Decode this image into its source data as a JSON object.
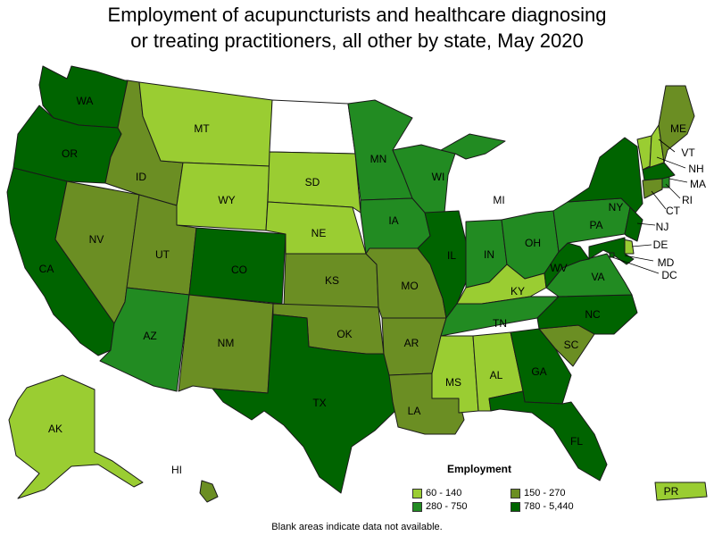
{
  "title_line1": "Employment of acupuncturists and healthcare diagnosing",
  "title_line2": "or treating practitioners, all other by state, May 2020",
  "colors": {
    "c1": "#9acd32",
    "c2": "#6b8e23",
    "c3": "#228b22",
    "c4": "#006400",
    "none": "#ffffff"
  },
  "legend": {
    "title": "Employment",
    "items": [
      {
        "label": "60 - 140",
        "class": "c1"
      },
      {
        "label": "150 - 270",
        "class": "c2"
      },
      {
        "label": "280 - 750",
        "class": "c3"
      },
      {
        "label": "780 - 5,440",
        "class": "c4"
      }
    ]
  },
  "footnote": "Blank areas indicate data not available.",
  "states": {
    "WA": {
      "label": "WA",
      "class": "c4"
    },
    "OR": {
      "label": "OR",
      "class": "c4"
    },
    "CA": {
      "label": "CA",
      "class": "c4"
    },
    "NV": {
      "label": "NV",
      "class": "c2"
    },
    "ID": {
      "label": "ID",
      "class": "c2"
    },
    "MT": {
      "label": "MT",
      "class": "c1"
    },
    "WY": {
      "label": "WY",
      "class": "c1"
    },
    "UT": {
      "label": "UT",
      "class": "c2"
    },
    "AZ": {
      "label": "AZ",
      "class": "c3"
    },
    "CO": {
      "label": "CO",
      "class": "c4"
    },
    "NM": {
      "label": "NM",
      "class": "c2"
    },
    "ND": {
      "label": "",
      "class": "none"
    },
    "SD": {
      "label": "SD",
      "class": "c1"
    },
    "NE": {
      "label": "NE",
      "class": "c1"
    },
    "KS": {
      "label": "KS",
      "class": "c2"
    },
    "OK": {
      "label": "OK",
      "class": "c2"
    },
    "TX": {
      "label": "TX",
      "class": "c4"
    },
    "MN": {
      "label": "MN",
      "class": "c3"
    },
    "IA": {
      "label": "IA",
      "class": "c3"
    },
    "MO": {
      "label": "MO",
      "class": "c2"
    },
    "AR": {
      "label": "AR",
      "class": "c2"
    },
    "LA": {
      "label": "LA",
      "class": "c2"
    },
    "WI": {
      "label": "WI",
      "class": "c3"
    },
    "IL": {
      "label": "IL",
      "class": "c4"
    },
    "MI": {
      "label": "MI",
      "class": "c3"
    },
    "IN": {
      "label": "IN",
      "class": "c3"
    },
    "OH": {
      "label": "OH",
      "class": "c3"
    },
    "KY": {
      "label": "KY",
      "class": "c1"
    },
    "TN": {
      "label": "TN",
      "class": "c3"
    },
    "MS": {
      "label": "MS",
      "class": "c1"
    },
    "AL": {
      "label": "AL",
      "class": "c1"
    },
    "GA": {
      "label": "GA",
      "class": "c4"
    },
    "FL": {
      "label": "FL",
      "class": "c4"
    },
    "SC": {
      "label": "SC",
      "class": "c2"
    },
    "NC": {
      "label": "NC",
      "class": "c4"
    },
    "VA": {
      "label": "VA",
      "class": "c3"
    },
    "WV": {
      "label": "WV",
      "class": "c4"
    },
    "PA": {
      "label": "PA",
      "class": "c3"
    },
    "NY": {
      "label": "NY",
      "class": "c4"
    },
    "ME": {
      "label": "ME",
      "class": "c2"
    },
    "VT": {
      "label": "VT",
      "class": "c1"
    },
    "NH": {
      "label": "NH",
      "class": "c1"
    },
    "MA": {
      "label": "MA",
      "class": "c4"
    },
    "RI": {
      "label": "RI",
      "class": "c3"
    },
    "CT": {
      "label": "CT",
      "class": "c2"
    },
    "NJ": {
      "label": "NJ",
      "class": "c4"
    },
    "DE": {
      "label": "DE",
      "class": "c1"
    },
    "MD": {
      "label": "MD",
      "class": "c4"
    },
    "DC": {
      "label": "DC",
      "class": "c4"
    },
    "AK": {
      "label": "AK",
      "class": "c1"
    },
    "HI": {
      "label": "HI",
      "class": "c2"
    },
    "PR": {
      "label": "PR",
      "class": "c1"
    }
  }
}
